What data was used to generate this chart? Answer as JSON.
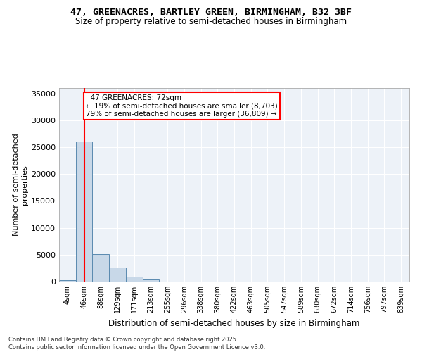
{
  "title1": "47, GREENACRES, BARTLEY GREEN, BIRMINGHAM, B32 3BF",
  "title2": "Size of property relative to semi-detached houses in Birmingham",
  "xlabel": "Distribution of semi-detached houses by size in Birmingham",
  "ylabel": "Number of semi-detached\nproperties",
  "footnote": "Contains HM Land Registry data © Crown copyright and database right 2025.\nContains public sector information licensed under the Open Government Licence v3.0.",
  "bin_labels": [
    "4sqm",
    "46sqm",
    "88sqm",
    "129sqm",
    "171sqm",
    "213sqm",
    "255sqm",
    "296sqm",
    "338sqm",
    "380sqm",
    "422sqm",
    "463sqm",
    "505sqm",
    "547sqm",
    "589sqm",
    "630sqm",
    "672sqm",
    "714sqm",
    "756sqm",
    "797sqm",
    "839sqm"
  ],
  "bar_values": [
    300,
    26000,
    5100,
    2600,
    900,
    400,
    50,
    0,
    0,
    0,
    0,
    0,
    0,
    0,
    0,
    0,
    0,
    0,
    0,
    0,
    0
  ],
  "bar_color": "#c8d8e8",
  "bar_edge_color": "#5a8ab0",
  "property_line_x": 1,
  "property_label": "47 GREENACRES: 72sqm",
  "pct_smaller": "19%",
  "n_smaller": "8,703",
  "pct_larger": "79%",
  "n_larger": "36,809",
  "line_color": "red",
  "background_color": "#edf2f8",
  "ylim": [
    0,
    36000
  ],
  "yticks": [
    0,
    5000,
    10000,
    15000,
    20000,
    25000,
    30000,
    35000
  ]
}
